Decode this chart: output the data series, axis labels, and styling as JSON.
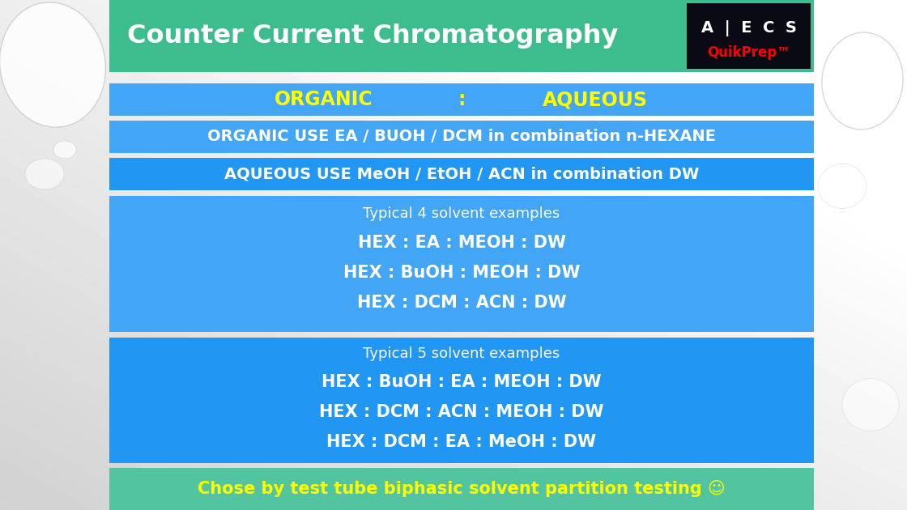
{
  "title": "Counter Current Chromatography",
  "title_color": "#FFFFFF",
  "title_bg_color": "#3DBD8D",
  "header_bg_color": "#42A5F5",
  "header_yellow_color": "#FFFF00",
  "row1_text": "ORGANIC USE EA / BUOH / DCM in combination n-HEXANE",
  "row2_text": "AQUEOUS USE MeOH / EtOH / ACN in combination DW",
  "box1_lines": [
    "Typical 4 solvent examples",
    "HEX : EA : MEOH : DW",
    "HEX : BuOH : MEOH : DW",
    "HEX : DCM : ACN : DW"
  ],
  "box2_lines": [
    "Typical 5 solvent examples",
    "HEX : BuOH : EA : MEOH : DW",
    "HEX : DCM : ACN : MEOH : DW",
    "HEX : DCM : EA : MeOH : DW"
  ],
  "footer_text": "Chose by test tube biphasic solvent partition testing ☺",
  "footer_bg_color": "#52C5A0",
  "footer_text_color": "#FFFF00",
  "white_text": "#FFFFFF",
  "blue_bg": "#42A5F5",
  "dark_blue_bg": "#2196F3",
  "logo_bg_top": "#1a1a2e",
  "logo_bg_bot": "#2d2d4e"
}
